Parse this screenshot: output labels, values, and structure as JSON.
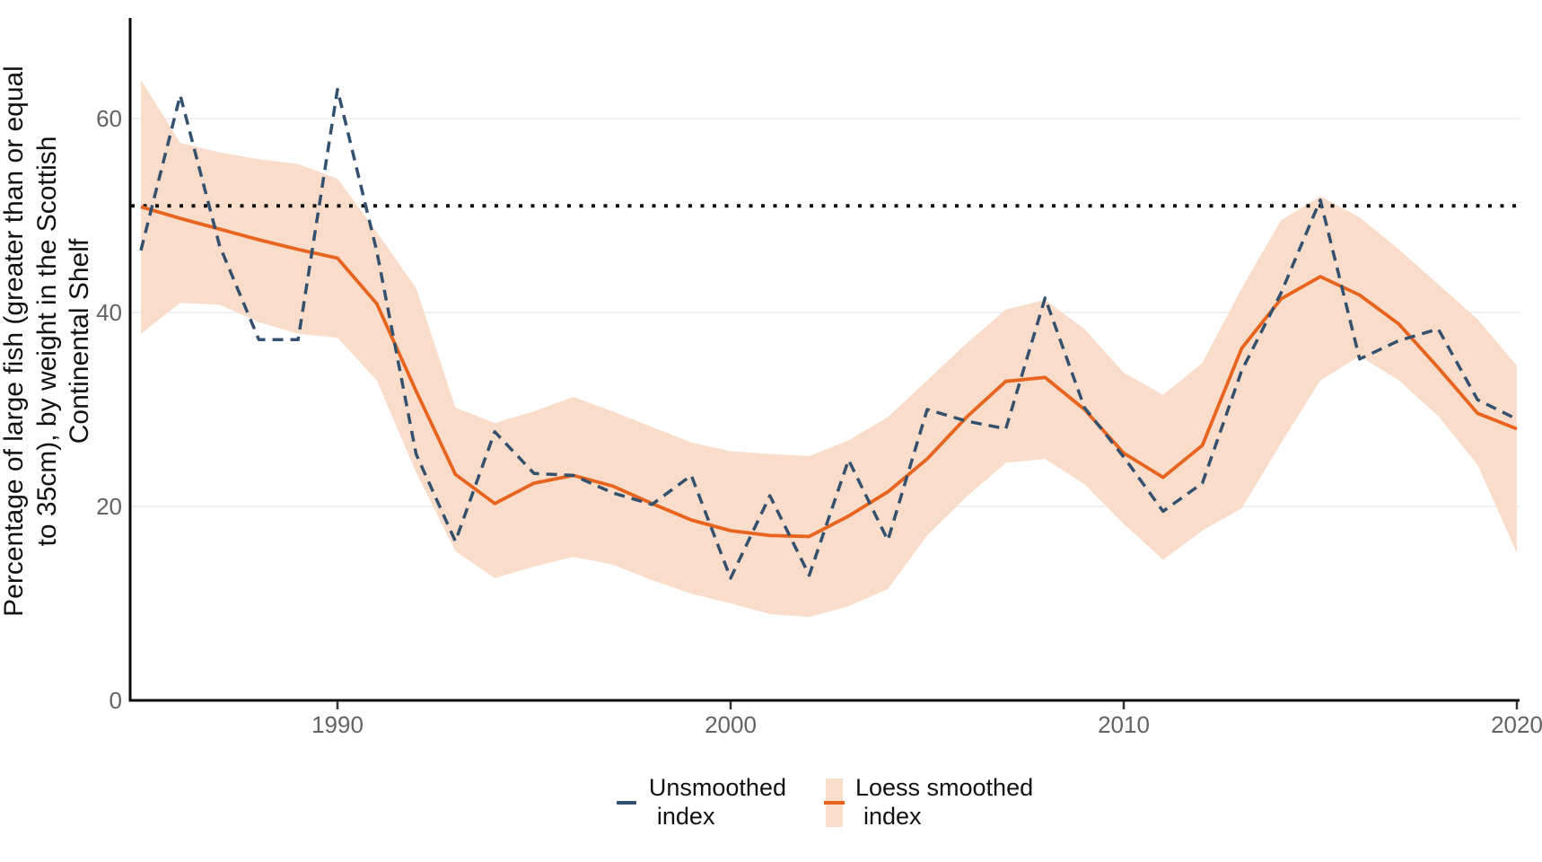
{
  "y_axis": {
    "title_lines": [
      "Percentage of large fish (greater than or equal",
      "to 35cm), by weight in the Scottish",
      "Continental Shelf"
    ],
    "tick_labels": [
      "0",
      "20",
      "40",
      "60"
    ],
    "tick_values": [
      0,
      20,
      40,
      60
    ]
  },
  "x_axis": {
    "tick_labels": [
      "1990",
      "2000",
      "2010",
      "2020"
    ],
    "tick_values": [
      1990,
      2000,
      2010,
      2020
    ]
  },
  "legend": {
    "unsmoothed_line1": "Unsmoothed",
    "unsmoothed_line2": "index",
    "smoothed_line1": "Loess smoothed",
    "smoothed_line2": "index"
  },
  "colors": {
    "unsmoothed_line": "#33516e",
    "smoothed_line": "#e8641e",
    "ribbon": "#fadcca",
    "reference_line": "#111111",
    "axis_line": "#0a0a0a",
    "gridline": "#ececec",
    "tick_text": "#636363"
  },
  "chart_data": {
    "type": "line",
    "title": "",
    "xlabel": "",
    "ylabel": "Percentage of large fish (greater than or equal to 35cm), by weight in the Scottish Continental Shelf",
    "grid": "horizontal",
    "legend_position": "bottom",
    "xlim": [
      1984.7,
      2020.1
    ],
    "ylim": [
      0,
      70.4
    ],
    "reference_line_y": 51,
    "x": [
      1985,
      1986,
      1987,
      1988,
      1989,
      1990,
      1991,
      1992,
      1993,
      1994,
      1995,
      1996,
      1997,
      1998,
      1999,
      2000,
      2001,
      2002,
      2003,
      2004,
      2005,
      2006,
      2007,
      2008,
      2009,
      2010,
      2011,
      2012,
      2013,
      2014,
      2015,
      2016,
      2017,
      2018,
      2019,
      2020
    ],
    "series": [
      {
        "name": "Unsmoothed index",
        "style": "dashed",
        "values": [
          46.4,
          62.4,
          46.9,
          37.2,
          37.2,
          63.0,
          46.3,
          25.4,
          16.4,
          27.7,
          23.4,
          23.2,
          21.4,
          20.2,
          23.2,
          12.6,
          21.1,
          12.9,
          24.8,
          16.5,
          30.0,
          28.8,
          28.0,
          41.5,
          30.2,
          25.1,
          19.5,
          22.4,
          34.0,
          42.0,
          51.6,
          35.2,
          37.1,
          38.3,
          31.0,
          29.0
        ]
      },
      {
        "name": "Loess smoothed index",
        "style": "solid",
        "values": [
          50.9,
          49.7,
          48.6,
          47.5,
          46.5,
          45.6,
          40.9,
          31.9,
          23.3,
          20.3,
          22.4,
          23.2,
          22.1,
          20.3,
          18.6,
          17.5,
          17.0,
          16.9,
          19.0,
          21.5,
          24.9,
          29.2,
          32.9,
          33.3,
          30.0,
          25.5,
          23.0,
          26.3,
          36.3,
          41.4,
          43.7,
          41.8,
          38.8,
          34.3,
          29.6,
          28.0
        ]
      }
    ],
    "band": {
      "name": "Loess smoothed index confidence band",
      "upper": [
        64.0,
        57.5,
        56.5,
        55.8,
        55.3,
        53.8,
        48.3,
        42.5,
        30.2,
        28.6,
        29.8,
        31.3,
        29.8,
        28.2,
        26.6,
        25.7,
        25.4,
        25.2,
        26.8,
        29.2,
        33.0,
        36.8,
        40.3,
        41.3,
        38.3,
        33.8,
        31.5,
        34.8,
        42.5,
        49.5,
        52.0,
        49.8,
        46.5,
        42.9,
        39.3,
        34.5
      ],
      "lower": [
        37.8,
        41.0,
        40.8,
        39.0,
        37.8,
        37.4,
        33.0,
        23.5,
        15.4,
        12.6,
        13.8,
        14.8,
        14.0,
        12.4,
        11.0,
        10.0,
        8.9,
        8.6,
        9.7,
        11.5,
        17.0,
        21.0,
        24.5,
        24.9,
        22.3,
        18.2,
        14.5,
        17.5,
        19.8,
        26.5,
        33.0,
        35.5,
        33.0,
        29.3,
        24.3,
        15.2
      ]
    }
  }
}
